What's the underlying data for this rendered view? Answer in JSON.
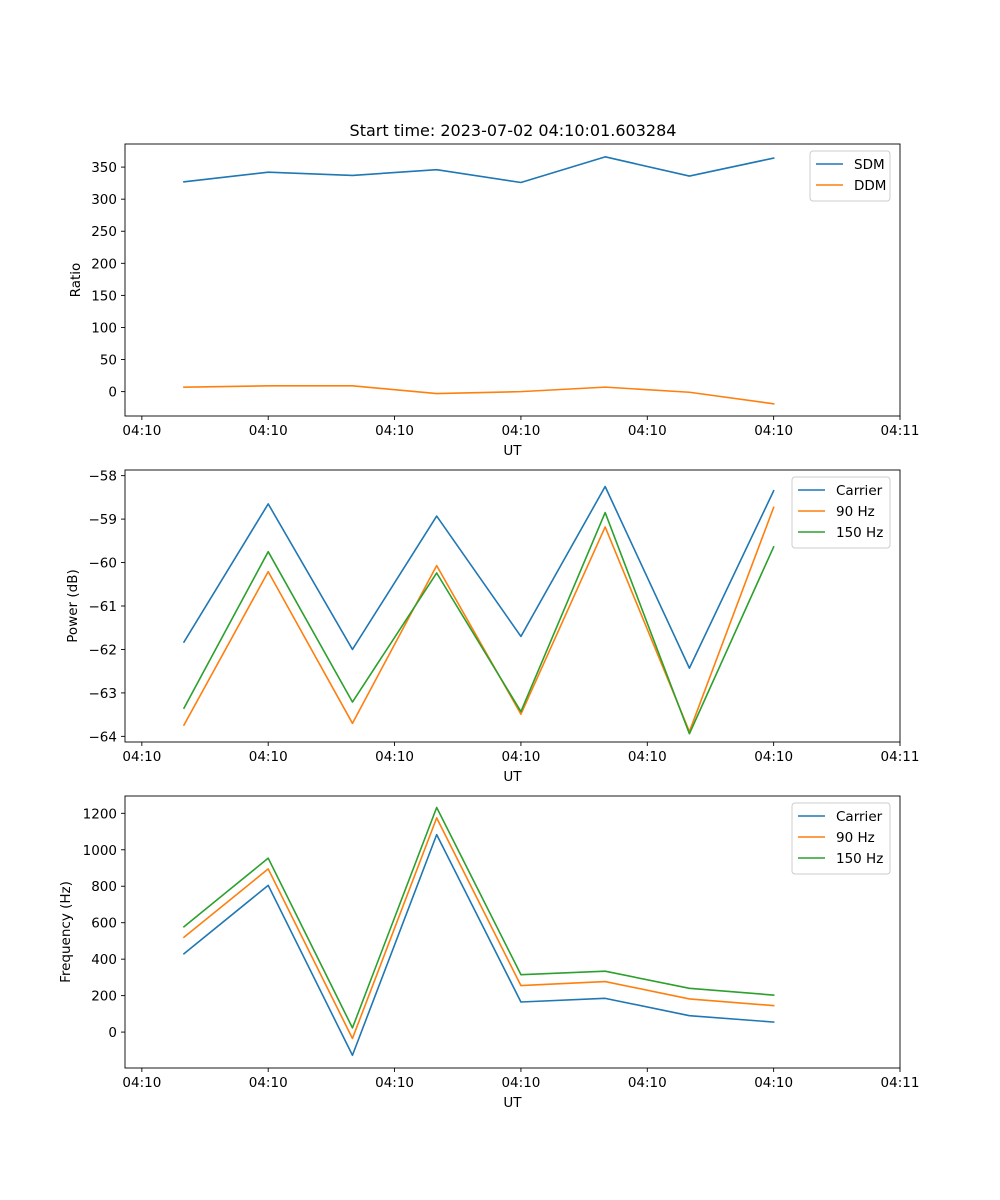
{
  "title": "Start time: 2023-07-02 04:10:01.603284",
  "colors": {
    "blue": "#1f77b4",
    "orange": "#ff7f0e",
    "green": "#2ca02c"
  },
  "chart_data": [
    {
      "type": "line",
      "title": "Start time: 2023-07-02 04:10:01.603284",
      "xlabel": "UT",
      "ylabel": "Ratio",
      "xlim": [
        -0.7,
        8.5
      ],
      "ylim": [
        -38,
        386
      ],
      "x": [
        0,
        1,
        2,
        3,
        4,
        5,
        6,
        7
      ],
      "xticks": [
        -0.5,
        1,
        2.5,
        4,
        5.5,
        7,
        8.5
      ],
      "xtick_labels": [
        "04:10",
        "04:10",
        "04:10",
        "04:10",
        "04:10",
        "04:10",
        "04:11"
      ],
      "yticks": [
        0,
        50,
        100,
        150,
        200,
        250,
        300,
        350
      ],
      "ytick_labels": [
        "0",
        "50",
        "100",
        "150",
        "200",
        "250",
        "300",
        "350"
      ],
      "legend_position": "top-right",
      "series": [
        {
          "name": "SDM",
          "color": "#1f77b4",
          "values": [
            327,
            342,
            337,
            346,
            326,
            366,
            336,
            364
          ]
        },
        {
          "name": "DDM",
          "color": "#ff7f0e",
          "values": [
            7,
            9,
            9,
            -3,
            0,
            7,
            -1,
            -19
          ]
        }
      ]
    },
    {
      "type": "line",
      "xlabel": "UT",
      "ylabel": "Power (dB)",
      "xlim": [
        -0.7,
        8.5
      ],
      "ylim": [
        -64.13,
        -57.87
      ],
      "x": [
        0,
        1,
        2,
        3,
        4,
        5,
        6,
        7
      ],
      "xticks": [
        -0.5,
        1,
        2.5,
        4,
        5.5,
        7,
        8.5
      ],
      "xtick_labels": [
        "04:10",
        "04:10",
        "04:10",
        "04:10",
        "04:10",
        "04:10",
        "04:11"
      ],
      "yticks": [
        -64,
        -63,
        -62,
        -61,
        -60,
        -59,
        -58
      ],
      "ytick_labels": [
        "−64",
        "−63",
        "−62",
        "−61",
        "−60",
        "−59",
        "−58"
      ],
      "legend_position": "top-right",
      "series": [
        {
          "name": "Carrier",
          "color": "#1f77b4",
          "values": [
            -61.83,
            -58.65,
            -62.0,
            -58.93,
            -61.7,
            -58.25,
            -62.43,
            -58.35
          ]
        },
        {
          "name": "90 Hz",
          "color": "#ff7f0e",
          "values": [
            -63.74,
            -60.21,
            -63.7,
            -60.07,
            -63.49,
            -59.18,
            -63.89,
            -58.73
          ]
        },
        {
          "name": "150 Hz",
          "color": "#2ca02c",
          "values": [
            -63.35,
            -59.75,
            -63.21,
            -60.24,
            -63.43,
            -58.85,
            -63.94,
            -59.64
          ]
        }
      ]
    },
    {
      "type": "line",
      "xlabel": "UT",
      "ylabel": "Frequency (Hz)",
      "xlim": [
        -0.7,
        8.5
      ],
      "ylim": [
        -197,
        1295
      ],
      "x": [
        0,
        1,
        2,
        3,
        4,
        5,
        6,
        7
      ],
      "xticks": [
        -0.5,
        1,
        2.5,
        4,
        5.5,
        7,
        8.5
      ],
      "xtick_labels": [
        "04:10",
        "04:10",
        "04:10",
        "04:10",
        "04:10",
        "04:10",
        "04:11"
      ],
      "yticks": [
        0,
        200,
        400,
        600,
        800,
        1000,
        1200
      ],
      "ytick_labels": [
        "0",
        "200",
        "400",
        "600",
        "800",
        "1000",
        "1200"
      ],
      "legend_position": "top-right",
      "series": [
        {
          "name": "Carrier",
          "color": "#1f77b4",
          "values": [
            430,
            805,
            -127,
            1083,
            165,
            185,
            90,
            55
          ]
        },
        {
          "name": "90 Hz",
          "color": "#ff7f0e",
          "values": [
            520,
            895,
            -35,
            1175,
            255,
            277,
            182,
            145
          ]
        },
        {
          "name": "150 Hz",
          "color": "#2ca02c",
          "values": [
            578,
            954,
            23,
            1232,
            315,
            334,
            240,
            203
          ]
        }
      ]
    }
  ]
}
